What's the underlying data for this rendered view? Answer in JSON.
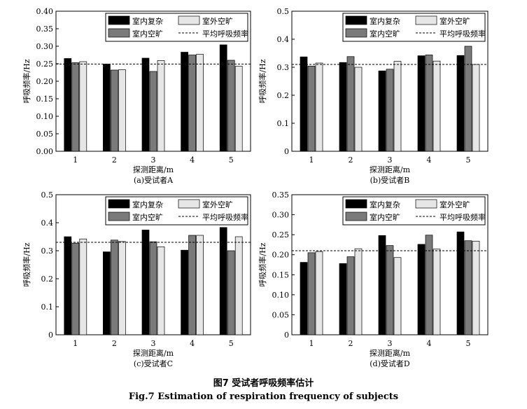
{
  "figure": {
    "caption_zh": "图7   受试者呼吸频率估计",
    "caption_en": "Fig.7   Estimation of respiration frequency of subjects"
  },
  "colors": {
    "indoor_complex": "#000000",
    "indoor_open": "#7a7a7a",
    "outdoor_open": "#e6e6e6",
    "avg_line": "#000000"
  },
  "chart_data": [
    {
      "type": "bar",
      "panel_label": "(a)受试者A",
      "xlabel": "探测距离/m",
      "ylabel": "呼吸频率/Hz",
      "categories": [
        "1",
        "2",
        "3",
        "4",
        "5"
      ],
      "ylim": [
        0,
        0.4
      ],
      "yticks": [
        "0.00",
        "0.05",
        "0.10",
        "0.15",
        "0.20",
        "0.25",
        "0.30",
        "0.35",
        "0.40"
      ],
      "series": [
        {
          "name": "室内复杂",
          "values": [
            0.265,
            0.249,
            0.266,
            0.283,
            0.304
          ]
        },
        {
          "name": "室内空旷",
          "values": [
            0.253,
            0.232,
            0.228,
            0.275,
            0.26
          ]
        },
        {
          "name": "室外空旷",
          "values": [
            0.256,
            0.233,
            0.259,
            0.277,
            0.243
          ]
        }
      ],
      "average": {
        "name": "平均呼吸频率",
        "value": 0.249
      },
      "legend_position": "top-right"
    },
    {
      "type": "bar",
      "panel_label": "(b)受试者B",
      "xlabel": "探测距离/m",
      "ylabel": "呼吸频率/Hz",
      "categories": [
        "1",
        "2",
        "3",
        "4",
        "5"
      ],
      "ylim": [
        0,
        0.5
      ],
      "yticks": [
        "0",
        "0.1",
        "0.2",
        "0.3",
        "0.4",
        "0.5"
      ],
      "series": [
        {
          "name": "室内复杂",
          "values": [
            0.337,
            0.317,
            0.287,
            0.341,
            0.342
          ]
        },
        {
          "name": "室内空旷",
          "values": [
            0.304,
            0.338,
            0.293,
            0.344,
            0.375
          ]
        },
        {
          "name": "室外空旷",
          "values": [
            0.315,
            0.3,
            0.321,
            0.322,
            0.31
          ]
        }
      ],
      "average": {
        "name": "平均呼吸频率",
        "value": 0.31
      },
      "legend_position": "top-right"
    },
    {
      "type": "bar",
      "panel_label": "(c)受试者C",
      "xlabel": "探测距离/m",
      "ylabel": "呼吸频率/Hz",
      "categories": [
        "1",
        "2",
        "3",
        "4",
        "5"
      ],
      "ylim": [
        0,
        0.5
      ],
      "yticks": [
        "0",
        "0.1",
        "0.2",
        "0.3",
        "0.4",
        "0.5"
      ],
      "series": [
        {
          "name": "室内复杂",
          "values": [
            0.35,
            0.296,
            0.374,
            0.302,
            0.383
          ]
        },
        {
          "name": "室内空旷",
          "values": [
            0.327,
            0.338,
            0.332,
            0.355,
            0.3
          ]
        },
        {
          "name": "室外空旷",
          "values": [
            0.342,
            0.333,
            0.314,
            0.355,
            0.35
          ]
        }
      ],
      "average": {
        "name": "平均呼吸频率",
        "value": 0.33
      },
      "legend_position": "top-right"
    },
    {
      "type": "bar",
      "panel_label": "(d)受试者D",
      "xlabel": "探测距离/m",
      "ylabel": "呼吸频率/Hz",
      "categories": [
        "1",
        "2",
        "3",
        "4",
        "5"
      ],
      "ylim": [
        0,
        0.35
      ],
      "yticks": [
        "0",
        "0.05",
        "0.10",
        "0.15",
        "0.20",
        "0.25",
        "0.30",
        "0.35"
      ],
      "series": [
        {
          "name": "室内复杂",
          "values": [
            0.181,
            0.178,
            0.248,
            0.226,
            0.257
          ]
        },
        {
          "name": "室内空旷",
          "values": [
            0.205,
            0.195,
            0.223,
            0.249,
            0.235
          ]
        },
        {
          "name": "室外空旷",
          "values": [
            0.208,
            0.215,
            0.193,
            0.214,
            0.234
          ]
        }
      ],
      "average": {
        "name": "平均呼吸频率",
        "value": 0.21
      },
      "legend_position": "top-right"
    }
  ]
}
